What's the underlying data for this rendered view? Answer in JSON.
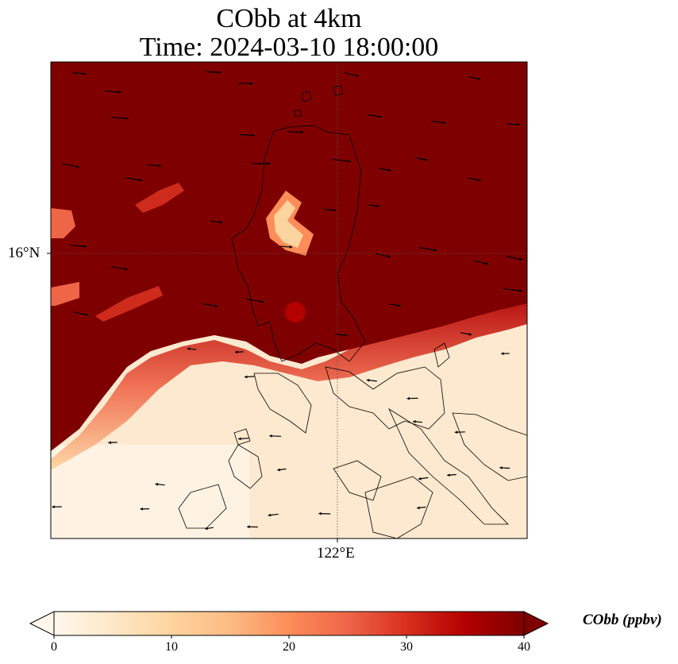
{
  "title_line1": "CObb at 4km",
  "title_line2": "Time: 2024-03-10 18:00:00",
  "map": {
    "lat_gridline_label": "16°N",
    "lon_gridline_label": "122°E",
    "high_color": "#7f0000",
    "low_color": "#fde9cf",
    "coastline_color": "#000000",
    "gridline_style": "dotted"
  },
  "colorbar": {
    "label": "CObb (ppbv)",
    "ticks": [
      "0",
      "10",
      "20",
      "30",
      "40"
    ],
    "range": [
      0,
      40
    ],
    "extend": "both",
    "colormap": "OrRd",
    "stops": [
      "#fff7ec",
      "#fee8c8",
      "#fdd49e",
      "#fdbb84",
      "#fc8d59",
      "#ef6548",
      "#d7301f",
      "#b30000",
      "#7f0000"
    ]
  }
}
